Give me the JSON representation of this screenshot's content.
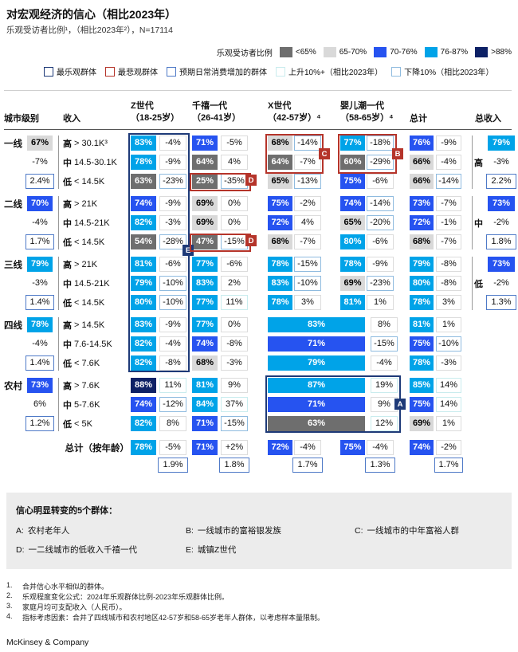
{
  "title": "对宏观经济的信心（相比2023年）",
  "subtitle": "乐观受访者比例¹，（相比2023年²），N=17114",
  "legend": {
    "scale_label": "乐观受访者比例",
    "scale": [
      {
        "label": "<65%",
        "color": "#6e6e6e"
      },
      {
        "label": "65-70%",
        "color": "#d9d9d9"
      },
      {
        "label": "70-76%",
        "color": "#2653f0"
      },
      {
        "label": "76-87%",
        "color": "#00a3e8"
      },
      {
        "label": ">88%",
        "color": "#0d2166"
      }
    ],
    "markers": [
      {
        "label": "最乐观群体",
        "border": "#1e3a78"
      },
      {
        "label": "最悲观群体",
        "border": "#b5342a"
      },
      {
        "label": "预期日常消费增加的群体",
        "border": "#4f7ac7"
      },
      {
        "label": "上升10%+（相比2023年）",
        "border": "#c9ecee"
      },
      {
        "label": "下降10%（相比2023年）",
        "border": "#8fbbdf"
      }
    ]
  },
  "chart_data": {
    "type": "heatmap",
    "title": "对宏观经济的信心（相比2023年）",
    "note": "乐观受访者比例，相比2023年变化，及预期日常消费增加幅度",
    "sample_size": "N=17114",
    "headers": {
      "tier": "城市级别",
      "income": "收入",
      "gens": [
        {
          "l1": "Z世代",
          "l2": "（18-25岁）"
        },
        {
          "l1": "千禧一代",
          "l2": "（26-41岁）"
        },
        {
          "l1": "X世代",
          "l2": "（42-57岁）⁴"
        },
        {
          "l1": "婴儿潮一代",
          "l2": "（58-65岁）⁴"
        }
      ],
      "total": "总计",
      "total_income": "总收入"
    },
    "groups": [
      {
        "tier": "一线",
        "stat": {
          "v": "67%",
          "tone": "lg",
          "d": "-7%",
          "c": "2.4%"
        },
        "rows": [
          {
            "level": "高",
            "range": "> 30.1K³",
            "cells": {
              "z": {
                "v": "83%",
                "tone": "cy",
                "d": "-4%",
                "dbox": ""
              },
              "m": {
                "v": "71%",
                "tone": "bl",
                "d": "-5%",
                "dbox": ""
              },
              "x": {
                "v": "68%",
                "tone": "lg",
                "d": "-14%",
                "dbox": "down"
              },
              "b": {
                "v": "77%",
                "tone": "cy",
                "d": "-18%",
                "dbox": "down"
              },
              "t": {
                "v": "76%",
                "tone": "bl",
                "d": "-9%",
                "dbox": ""
              }
            }
          },
          {
            "level": "中",
            "range": "14.5-30.1K",
            "cells": {
              "z": {
                "v": "78%",
                "tone": "cy",
                "d": "-9%",
                "dbox": ""
              },
              "m": {
                "v": "64%",
                "tone": "g",
                "d": "4%",
                "dbox": ""
              },
              "x": {
                "v": "64%",
                "tone": "g",
                "d": "-7%",
                "dbox": ""
              },
              "b": {
                "v": "60%",
                "tone": "g",
                "d": "-29%",
                "dbox": "down"
              },
              "t": {
                "v": "66%",
                "tone": "lg",
                "d": "-4%",
                "dbox": ""
              }
            }
          },
          {
            "level": "低",
            "range": "< 14.5K",
            "cells": {
              "z": {
                "v": "63%",
                "tone": "g",
                "d": "-23%",
                "dbox": "down"
              },
              "m": {
                "v": "25%",
                "tone": "g",
                "d": "-35%",
                "dbox": "down"
              },
              "x": {
                "v": "65%",
                "tone": "lg",
                "d": "-13%",
                "dbox": "down"
              },
              "b": {
                "v": "75%",
                "tone": "bl",
                "d": "-6%",
                "dbox": ""
              },
              "t": {
                "v": "66%",
                "tone": "lg",
                "d": "-14%",
                "dbox": "down"
              }
            }
          }
        ],
        "income_total": {
          "label": "高",
          "v": "79%",
          "tone": "cy",
          "d": "-3%",
          "c": "2.2%"
        }
      },
      {
        "tier": "二线",
        "stat": {
          "v": "70%",
          "tone": "bl",
          "d": "-4%",
          "c": "1.7%"
        },
        "rows": [
          {
            "level": "高",
            "range": "> 21K",
            "cells": {
              "z": {
                "v": "74%",
                "tone": "bl",
                "d": "-9%",
                "dbox": ""
              },
              "m": {
                "v": "69%",
                "tone": "lg",
                "d": "0%",
                "dbox": ""
              },
              "x": {
                "v": "75%",
                "tone": "bl",
                "d": "-2%",
                "dbox": ""
              },
              "b": {
                "v": "74%",
                "tone": "bl",
                "d": "-14%",
                "dbox": "down"
              },
              "t": {
                "v": "73%",
                "tone": "bl",
                "d": "-7%",
                "dbox": ""
              }
            }
          },
          {
            "level": "中",
            "range": "14.5-21K",
            "cells": {
              "z": {
                "v": "82%",
                "tone": "cy",
                "d": "-3%",
                "dbox": ""
              },
              "m": {
                "v": "69%",
                "tone": "lg",
                "d": "0%",
                "dbox": ""
              },
              "x": {
                "v": "72%",
                "tone": "bl",
                "d": "4%",
                "dbox": ""
              },
              "b": {
                "v": "65%",
                "tone": "lg",
                "d": "-20%",
                "dbox": "down"
              },
              "t": {
                "v": "72%",
                "tone": "bl",
                "d": "-1%",
                "dbox": ""
              }
            }
          },
          {
            "level": "低",
            "range": "< 14.5K",
            "cells": {
              "z": {
                "v": "54%",
                "tone": "g",
                "d": "-28%",
                "dbox": "down"
              },
              "m": {
                "v": "47%",
                "tone": "g",
                "d": "-15%",
                "dbox": "down"
              },
              "x": {
                "v": "68%",
                "tone": "lg",
                "d": "-7%",
                "dbox": ""
              },
              "b": {
                "v": "80%",
                "tone": "cy",
                "d": "-6%",
                "dbox": ""
              },
              "t": {
                "v": "68%",
                "tone": "lg",
                "d": "-7%",
                "dbox": ""
              }
            }
          }
        ],
        "income_total": {
          "label": "中",
          "v": "73%",
          "tone": "bl",
          "d": "-2%",
          "c": "1.8%"
        }
      },
      {
        "tier": "三线",
        "stat": {
          "v": "79%",
          "tone": "cy",
          "d": "-3%",
          "c": "1.4%"
        },
        "rows": [
          {
            "level": "高",
            "range": "> 21K",
            "cells": {
              "z": {
                "v": "81%",
                "tone": "cy",
                "d": "-6%",
                "dbox": ""
              },
              "m": {
                "v": "77%",
                "tone": "cy",
                "d": "-6%",
                "dbox": ""
              },
              "x": {
                "v": "78%",
                "tone": "cy",
                "d": "-15%",
                "dbox": "down"
              },
              "b": {
                "v": "78%",
                "tone": "cy",
                "d": "-9%",
                "dbox": ""
              },
              "t": {
                "v": "79%",
                "tone": "cy",
                "d": "-8%",
                "dbox": ""
              }
            }
          },
          {
            "level": "中",
            "range": "14.5-21K",
            "cells": {
              "z": {
                "v": "79%",
                "tone": "cy",
                "d": "-10%",
                "dbox": "down"
              },
              "m": {
                "v": "83%",
                "tone": "cy",
                "d": "2%",
                "dbox": ""
              },
              "x": {
                "v": "83%",
                "tone": "cy",
                "d": "-10%",
                "dbox": "down"
              },
              "b": {
                "v": "69%",
                "tone": "lg",
                "d": "-23%",
                "dbox": "down"
              },
              "t": {
                "v": "80%",
                "tone": "cy",
                "d": "-8%",
                "dbox": ""
              }
            }
          },
          {
            "level": "低",
            "range": "< 14.5K",
            "cells": {
              "z": {
                "v": "80%",
                "tone": "cy",
                "d": "-10%",
                "dbox": "down"
              },
              "m": {
                "v": "77%",
                "tone": "cy",
                "d": "11%",
                "dbox": "up"
              },
              "x": {
                "v": "78%",
                "tone": "cy",
                "d": "3%",
                "dbox": ""
              },
              "b": {
                "v": "81%",
                "tone": "cy",
                "d": "1%",
                "dbox": ""
              },
              "t": {
                "v": "78%",
                "tone": "cy",
                "d": "3%",
                "dbox": ""
              }
            }
          }
        ],
        "income_total": {
          "label": "低",
          "v": "73%",
          "tone": "bl",
          "d": "-2%",
          "c": "1.3%"
        }
      },
      {
        "tier": "四线",
        "stat": {
          "v": "78%",
          "tone": "cy",
          "d": "-4%",
          "c": "1.4%"
        },
        "rows": [
          {
            "level": "高",
            "range": "> 14.5K",
            "cells": {
              "z": {
                "v": "83%",
                "tone": "cy",
                "d": "-9%",
                "dbox": ""
              },
              "m": {
                "v": "77%",
                "tone": "cy",
                "d": "0%",
                "dbox": ""
              },
              "xb": {
                "v": "83%",
                "tone": "cy",
                "d": "8%",
                "dbox": ""
              },
              "t": {
                "v": "81%",
                "tone": "cy",
                "d": "1%",
                "dbox": ""
              }
            }
          },
          {
            "level": "中",
            "range": "7.6-14.5K",
            "cells": {
              "z": {
                "v": "82%",
                "tone": "cy",
                "d": "-4%",
                "dbox": ""
              },
              "m": {
                "v": "74%",
                "tone": "bl",
                "d": "-8%",
                "dbox": ""
              },
              "xb": {
                "v": "71%",
                "tone": "bl",
                "d": "-15%",
                "dbox": "down"
              },
              "t": {
                "v": "75%",
                "tone": "bl",
                "d": "-10%",
                "dbox": "down"
              }
            }
          },
          {
            "level": "低",
            "range": "< 7.6K",
            "cells": {
              "z": {
                "v": "82%",
                "tone": "cy",
                "d": "-8%",
                "dbox": ""
              },
              "m": {
                "v": "68%",
                "tone": "lg",
                "d": "-3%",
                "dbox": ""
              },
              "xb": {
                "v": "79%",
                "tone": "cy",
                "d": "-4%",
                "dbox": ""
              },
              "t": {
                "v": "78%",
                "tone": "cy",
                "d": "-3%",
                "dbox": ""
              }
            }
          }
        ],
        "income_total": null
      },
      {
        "tier": "农村",
        "stat": {
          "v": "73%",
          "tone": "bl",
          "d": "6%",
          "c": "1.2%"
        },
        "rows": [
          {
            "level": "高",
            "range": "> 7.6K",
            "cells": {
              "z": {
                "v": "88%",
                "tone": "nv",
                "d": "11%",
                "dbox": "up"
              },
              "m": {
                "v": "81%",
                "tone": "cy",
                "d": "9%",
                "dbox": ""
              },
              "xb": {
                "v": "87%",
                "tone": "cy",
                "d": "19%",
                "dbox": "up"
              },
              "t": {
                "v": "85%",
                "tone": "cy",
                "d": "14%",
                "dbox": "up"
              }
            }
          },
          {
            "level": "中",
            "range": "5-7.6K",
            "cells": {
              "z": {
                "v": "74%",
                "tone": "bl",
                "d": "-12%",
                "dbox": "down"
              },
              "m": {
                "v": "84%",
                "tone": "cy",
                "d": "37%",
                "dbox": "up"
              },
              "xb": {
                "v": "71%",
                "tone": "bl",
                "d": "9%",
                "dbox": ""
              },
              "t": {
                "v": "75%",
                "tone": "bl",
                "d": "14%",
                "dbox": "up"
              }
            }
          },
          {
            "level": "低",
            "range": "< 5K",
            "cells": {
              "z": {
                "v": "82%",
                "tone": "cy",
                "d": "8%",
                "dbox": ""
              },
              "m": {
                "v": "71%",
                "tone": "bl",
                "d": "-15%",
                "dbox": "down"
              },
              "xb": {
                "v": "63%",
                "tone": "g",
                "d": "12%",
                "dbox": "up"
              },
              "t": {
                "v": "69%",
                "tone": "lg",
                "d": "1%",
                "dbox": ""
              }
            }
          }
        ],
        "income_total": null
      }
    ],
    "totals_row": {
      "label": "总计（按年龄）",
      "cells": [
        {
          "v": "78%",
          "tone": "cy",
          "d": "-5%",
          "dbox": "",
          "c": "1.9%"
        },
        {
          "v": "71%",
          "tone": "bl",
          "d": "+2%",
          "dbox": "",
          "c": "1.8%"
        },
        {
          "v": "72%",
          "tone": "bl",
          "d": "-4%",
          "dbox": "",
          "c": "1.7%"
        },
        {
          "v": "75%",
          "tone": "bl",
          "d": "-4%",
          "dbox": "",
          "c": "1.3%"
        },
        {
          "v": "74%",
          "tone": "bl",
          "d": "-2%",
          "dbox": "",
          "c": "1.7%"
        }
      ]
    },
    "overlays": [
      {
        "id": "E",
        "letter": "E",
        "style": "optimistic"
      },
      {
        "id": "A",
        "letter": "A",
        "style": "optimistic"
      },
      {
        "id": "B",
        "letter": "B",
        "style": "pessimistic"
      },
      {
        "id": "C",
        "letter": "C",
        "style": "pessimistic"
      },
      {
        "id": "D1",
        "letter": "D",
        "style": "pessimistic"
      },
      {
        "id": "D2",
        "letter": "D",
        "style": "pessimistic"
      }
    ]
  },
  "callouts": {
    "title": "信心明显转变的5个群体：",
    "items": [
      {
        "label": "A:",
        "text": "农村老年人"
      },
      {
        "label": "B:",
        "text": "一线城市的富裕银发族"
      },
      {
        "label": "C:",
        "text": "一线城市的中年富裕人群"
      },
      {
        "label": "D:",
        "text": "一二线城市的低收入千禧一代"
      },
      {
        "label": "E:",
        "text": "城镇Z世代"
      }
    ]
  },
  "footnotes": [
    {
      "n": "1.",
      "t": "合并信心水平相似的群体。"
    },
    {
      "n": "2.",
      "t": "乐观程度变化公式：2024年乐观群体比例-2023年乐观群体比例。"
    },
    {
      "n": "3.",
      "t": "家庭月均可支配收入（人民币）。"
    },
    {
      "n": "4.",
      "t": "指标考虑因素：合并了四线城市和农村地区42-57岁和58-65岁老年人群体，以考虑样本量限制。"
    }
  ],
  "footer": "McKinsey & Company"
}
